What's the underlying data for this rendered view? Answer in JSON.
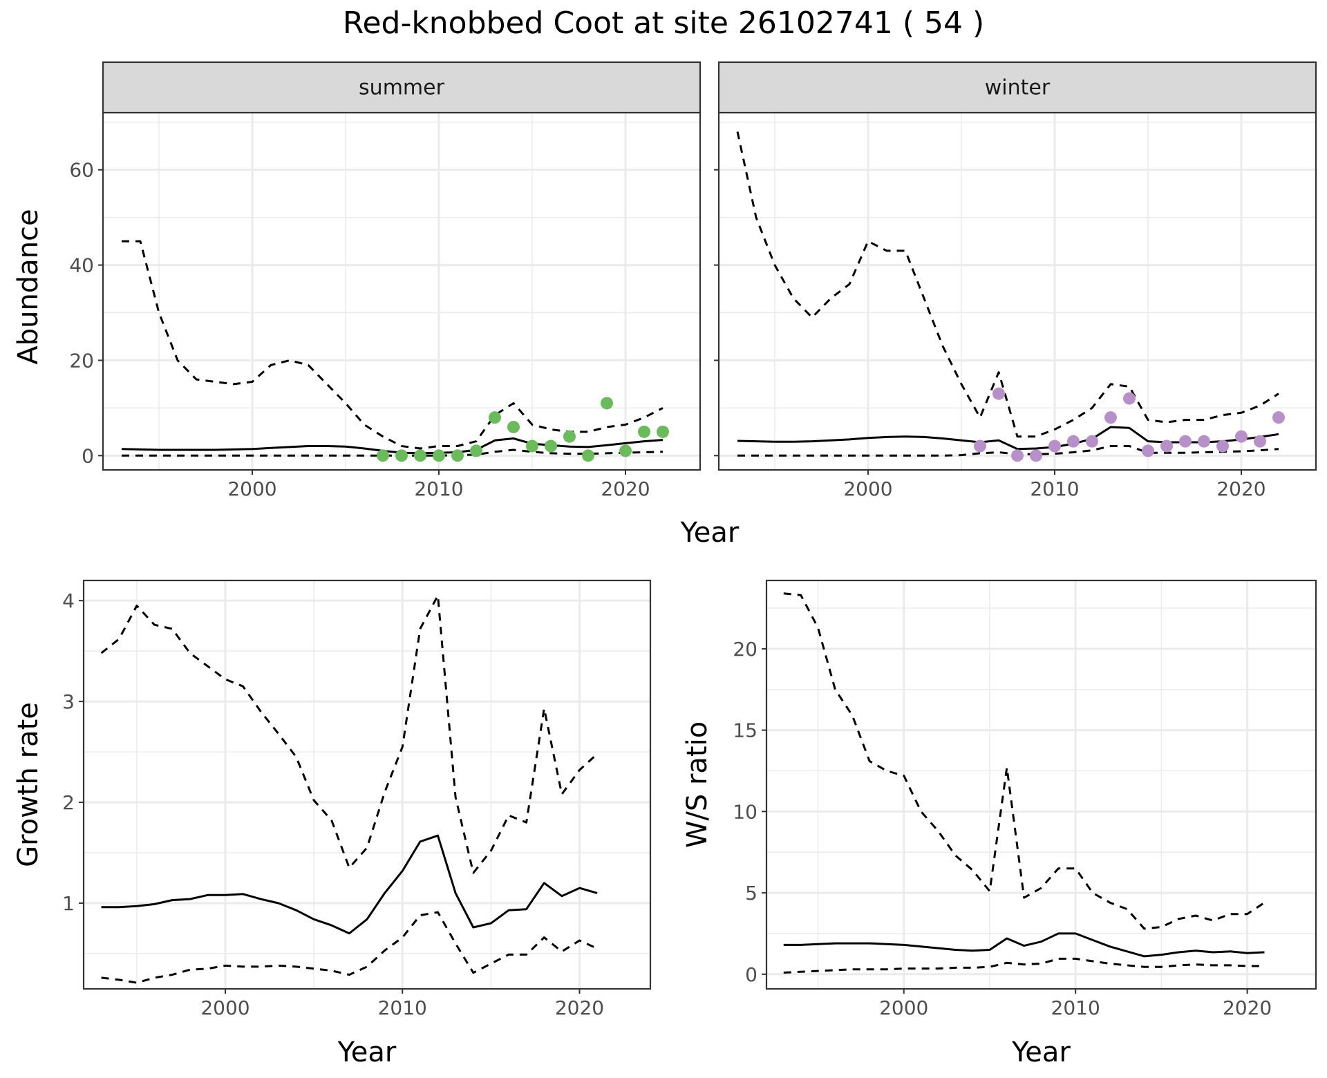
{
  "title": "Red-knobbed Coot at site 26102741 ( 54 )",
  "colors": {
    "summer": "#6ABB5A",
    "winter": "#B890C9",
    "line": "#000000",
    "grid": "#EBEBEB"
  },
  "chart_data": [
    {
      "type": "line",
      "facet": "summer",
      "strip": "summer",
      "xlabel": "Year",
      "ylabel": "Abundance",
      "xlim": [
        1992,
        2024
      ],
      "ylim": [
        -3,
        72
      ],
      "xticks": [
        2000,
        2010,
        2020
      ],
      "yticks": [
        0,
        20,
        40,
        60
      ],
      "series": [
        {
          "role": "upper",
          "style": "dashed",
          "x": [
            1993,
            1994,
            1995,
            1996,
            1997,
            1998,
            1999,
            2000,
            2001,
            2002,
            2003,
            2004,
            2005,
            2006,
            2007,
            2008,
            2009,
            2010,
            2011,
            2012,
            2013,
            2014,
            2015,
            2016,
            2017,
            2018,
            2019,
            2020,
            2021,
            2022
          ],
          "y": [
            45,
            45,
            30,
            20,
            16,
            15.5,
            15,
            15.5,
            19,
            20,
            19,
            15,
            11,
            6.5,
            4,
            2,
            1.5,
            2,
            2,
            3,
            8.5,
            11,
            6.5,
            5.5,
            5,
            5,
            6,
            6.5,
            8,
            10
          ]
        },
        {
          "role": "estimate",
          "style": "solid",
          "x": [
            1993,
            1994,
            1995,
            1996,
            1997,
            1998,
            1999,
            2000,
            2001,
            2002,
            2003,
            2004,
            2005,
            2006,
            2007,
            2008,
            2009,
            2010,
            2011,
            2012,
            2013,
            2014,
            2015,
            2016,
            2017,
            2018,
            2019,
            2020,
            2021,
            2022
          ],
          "y": [
            1.4,
            1.3,
            1.2,
            1.2,
            1.2,
            1.2,
            1.3,
            1.4,
            1.6,
            1.8,
            2.0,
            2.0,
            1.9,
            1.5,
            1.0,
            0.6,
            0.5,
            0.6,
            0.7,
            1.2,
            3.2,
            3.6,
            2.5,
            2.2,
            1.9,
            1.8,
            2.2,
            2.6,
            3.0,
            3.3
          ]
        },
        {
          "role": "lower",
          "style": "dashed",
          "x": [
            1993,
            1994,
            1995,
            1996,
            1997,
            1998,
            1999,
            2000,
            2001,
            2002,
            2003,
            2004,
            2005,
            2006,
            2007,
            2008,
            2009,
            2010,
            2011,
            2012,
            2013,
            2014,
            2015,
            2016,
            2017,
            2018,
            2019,
            2020,
            2021,
            2022
          ],
          "y": [
            0,
            0,
            0,
            0,
            0,
            0,
            0,
            0,
            0,
            0,
            0,
            0,
            0,
            0,
            0,
            0,
            0,
            0,
            0.1,
            0.2,
            0.8,
            1.2,
            0.8,
            0.5,
            0.4,
            0.4,
            0.5,
            0.6,
            0.7,
            0.8
          ]
        }
      ],
      "points": {
        "x": [
          2007,
          2008,
          2009,
          2010,
          2011,
          2012,
          2013,
          2014,
          2015,
          2016,
          2017,
          2018,
          2019,
          2020,
          2021,
          2022
        ],
        "y": [
          0,
          0,
          0,
          0,
          0,
          1,
          8,
          6,
          2,
          2,
          4,
          0,
          11,
          1,
          5,
          5
        ]
      }
    },
    {
      "type": "line",
      "facet": "winter",
      "strip": "winter",
      "xlabel": "Year",
      "ylabel": "Abundance",
      "xlim": [
        1992,
        2024
      ],
      "ylim": [
        -3,
        72
      ],
      "xticks": [
        2000,
        2010,
        2020
      ],
      "yticks": [
        0,
        20,
        40,
        60
      ],
      "series": [
        {
          "role": "upper",
          "style": "dashed",
          "x": [
            1993,
            1994,
            1995,
            1996,
            1997,
            1998,
            1999,
            2000,
            2001,
            2002,
            2003,
            2004,
            2005,
            2006,
            2007,
            2008,
            2009,
            2010,
            2011,
            2012,
            2013,
            2014,
            2015,
            2016,
            2017,
            2018,
            2019,
            2020,
            2021,
            2022
          ],
          "y": [
            68,
            50,
            40,
            33,
            29,
            33,
            36,
            45,
            43,
            43,
            33,
            23,
            15,
            8,
            17.5,
            4,
            4,
            5.5,
            7.5,
            10,
            15,
            14.5,
            7.5,
            7,
            7.5,
            7.5,
            8.5,
            9,
            10.5,
            13
          ]
        },
        {
          "role": "estimate",
          "style": "solid",
          "x": [
            1993,
            1994,
            1995,
            1996,
            1997,
            1998,
            1999,
            2000,
            2001,
            2002,
            2003,
            2004,
            2005,
            2006,
            2007,
            2008,
            2009,
            2010,
            2011,
            2012,
            2013,
            2014,
            2015,
            2016,
            2017,
            2018,
            2019,
            2020,
            2021,
            2022
          ],
          "y": [
            3.1,
            3.0,
            2.9,
            2.9,
            3.0,
            3.2,
            3.4,
            3.7,
            3.9,
            4.0,
            3.9,
            3.6,
            3.2,
            2.8,
            3.2,
            1.4,
            1.5,
            1.8,
            2.5,
            3.5,
            6.0,
            5.8,
            3.0,
            2.8,
            2.8,
            2.8,
            3.0,
            3.4,
            3.9,
            4.5
          ]
        },
        {
          "role": "lower",
          "style": "dashed",
          "x": [
            1993,
            1994,
            1995,
            1996,
            1997,
            1998,
            1999,
            2000,
            2001,
            2002,
            2003,
            2004,
            2005,
            2006,
            2007,
            2008,
            2009,
            2010,
            2011,
            2012,
            2013,
            2014,
            2015,
            2016,
            2017,
            2018,
            2019,
            2020,
            2021,
            2022
          ],
          "y": [
            0,
            0,
            0,
            0,
            0,
            0,
            0,
            0,
            0,
            0,
            0,
            0,
            0.1,
            0.5,
            0.7,
            0.3,
            0.3,
            0.4,
            0.7,
            1.1,
            2.0,
            2.0,
            0.6,
            0.6,
            0.6,
            0.7,
            0.8,
            0.9,
            1.1,
            1.4
          ]
        }
      ],
      "points": {
        "x": [
          2006,
          2007,
          2008,
          2009,
          2010,
          2011,
          2012,
          2013,
          2014,
          2015,
          2016,
          2017,
          2018,
          2019,
          2020,
          2021,
          2022
        ],
        "y": [
          2,
          13,
          0,
          0,
          2,
          3,
          3,
          8,
          12,
          1,
          2,
          3,
          3,
          2,
          4,
          3,
          8
        ]
      }
    },
    {
      "type": "line",
      "xlabel": "Year",
      "ylabel": "Growth rate",
      "xlim": [
        1992,
        2024
      ],
      "ylim": [
        0.15,
        4.2
      ],
      "xticks": [
        2000,
        2010,
        2020
      ],
      "yticks": [
        1,
        2,
        3,
        4
      ],
      "series": [
        {
          "role": "upper",
          "style": "dashed",
          "x": [
            1993,
            1994,
            1995,
            1996,
            1997,
            1998,
            1999,
            2000,
            2001,
            2002,
            2003,
            2004,
            2005,
            2006,
            2007,
            2008,
            2009,
            2010,
            2011,
            2012,
            2013,
            2014,
            2015,
            2016,
            2017,
            2018,
            2019,
            2020,
            2021
          ],
          "y": [
            3.48,
            3.62,
            3.95,
            3.76,
            3.72,
            3.48,
            3.35,
            3.22,
            3.15,
            2.9,
            2.68,
            2.45,
            2.02,
            1.82,
            1.35,
            1.55,
            2.1,
            2.55,
            3.72,
            4.05,
            2.05,
            1.3,
            1.52,
            1.87,
            1.8,
            2.93,
            2.08,
            2.32,
            2.48
          ]
        },
        {
          "role": "estimate",
          "style": "solid",
          "x": [
            1993,
            1994,
            1995,
            1996,
            1997,
            1998,
            1999,
            2000,
            2001,
            2002,
            2003,
            2004,
            2005,
            2006,
            2007,
            2008,
            2009,
            2010,
            2011,
            2012,
            2013,
            2014,
            2015,
            2016,
            2017,
            2018,
            2019,
            2020,
            2021
          ],
          "y": [
            0.96,
            0.96,
            0.97,
            0.99,
            1.03,
            1.04,
            1.08,
            1.08,
            1.09,
            1.04,
            1.0,
            0.93,
            0.84,
            0.78,
            0.7,
            0.84,
            1.1,
            1.32,
            1.61,
            1.67,
            1.1,
            0.76,
            0.8,
            0.93,
            0.94,
            1.2,
            1.07,
            1.15,
            1.1
          ]
        },
        {
          "role": "lower",
          "style": "dashed",
          "x": [
            1993,
            1994,
            1995,
            1996,
            1997,
            1998,
            1999,
            2000,
            2001,
            2002,
            2003,
            2004,
            2005,
            2006,
            2007,
            2008,
            2009,
            2010,
            2011,
            2012,
            2013,
            2014,
            2015,
            2016,
            2017,
            2018,
            2019,
            2020,
            2021
          ],
          "y": [
            0.26,
            0.24,
            0.21,
            0.26,
            0.29,
            0.34,
            0.35,
            0.38,
            0.37,
            0.37,
            0.38,
            0.37,
            0.35,
            0.33,
            0.29,
            0.37,
            0.53,
            0.66,
            0.88,
            0.91,
            0.6,
            0.31,
            0.4,
            0.49,
            0.49,
            0.66,
            0.52,
            0.63,
            0.55
          ]
        }
      ]
    },
    {
      "type": "line",
      "xlabel": "Year",
      "ylabel": "W/S ratio",
      "xlim": [
        1992,
        2024
      ],
      "ylim": [
        -0.9,
        24.2
      ],
      "xticks": [
        2000,
        2010,
        2020
      ],
      "yticks": [
        0,
        5,
        10,
        15,
        20
      ],
      "series": [
        {
          "role": "upper",
          "style": "dashed",
          "x": [
            1993,
            1994,
            1995,
            1996,
            1997,
            1998,
            1999,
            2000,
            2001,
            2002,
            2003,
            2004,
            2005,
            2006,
            2007,
            2008,
            2009,
            2010,
            2011,
            2012,
            2013,
            2014,
            2015,
            2016,
            2017,
            2018,
            2019,
            2020,
            2021
          ],
          "y": [
            23.4,
            23.3,
            21.3,
            17.5,
            15.9,
            13.1,
            12.5,
            12.2,
            10.0,
            8.8,
            7.3,
            6.4,
            5.1,
            12.7,
            4.7,
            5.3,
            6.5,
            6.5,
            5.0,
            4.4,
            4.0,
            2.8,
            2.9,
            3.4,
            3.6,
            3.3,
            3.7,
            3.7,
            4.4
          ]
        },
        {
          "role": "estimate",
          "style": "solid",
          "x": [
            1993,
            1994,
            1995,
            1996,
            1997,
            1998,
            1999,
            2000,
            2001,
            2002,
            2003,
            2004,
            2005,
            2006,
            2007,
            2008,
            2009,
            2010,
            2011,
            2012,
            2013,
            2014,
            2015,
            2016,
            2017,
            2018,
            2019,
            2020,
            2021
          ],
          "y": [
            1.8,
            1.8,
            1.85,
            1.9,
            1.9,
            1.9,
            1.85,
            1.8,
            1.7,
            1.6,
            1.5,
            1.45,
            1.5,
            2.2,
            1.75,
            2.0,
            2.5,
            2.5,
            2.1,
            1.7,
            1.4,
            1.1,
            1.2,
            1.35,
            1.45,
            1.35,
            1.4,
            1.3,
            1.35
          ]
        },
        {
          "role": "lower",
          "style": "dashed",
          "x": [
            1993,
            1994,
            1995,
            1996,
            1997,
            1998,
            1999,
            2000,
            2001,
            2002,
            2003,
            2004,
            2005,
            2006,
            2007,
            2008,
            2009,
            2010,
            2011,
            2012,
            2013,
            2014,
            2015,
            2016,
            2017,
            2018,
            2019,
            2020,
            2021
          ],
          "y": [
            0.1,
            0.15,
            0.2,
            0.25,
            0.3,
            0.3,
            0.3,
            0.35,
            0.35,
            0.35,
            0.4,
            0.4,
            0.45,
            0.7,
            0.6,
            0.65,
            0.95,
            0.95,
            0.8,
            0.65,
            0.55,
            0.45,
            0.45,
            0.55,
            0.6,
            0.55,
            0.55,
            0.5,
            0.5
          ]
        }
      ]
    }
  ]
}
